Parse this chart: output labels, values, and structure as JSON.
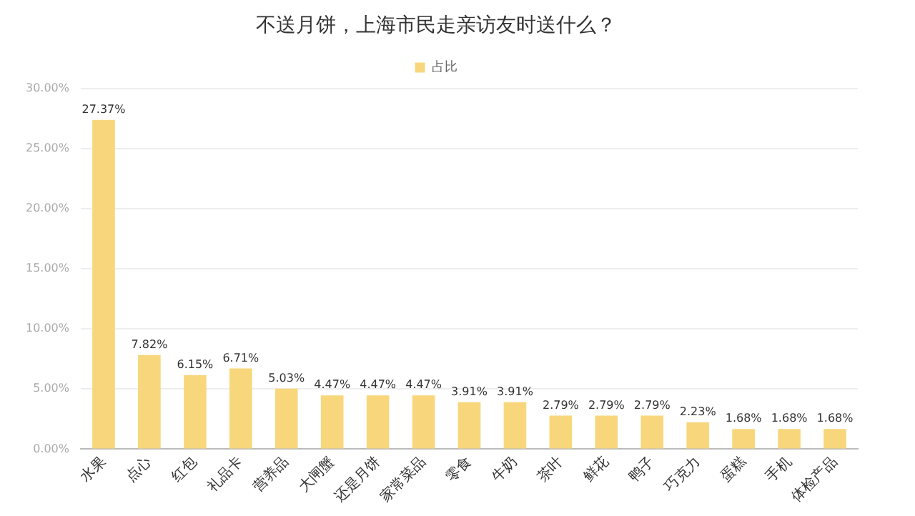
{
  "chart_data": {
    "type": "bar",
    "title": "不送月饼，上海市民走亲访友时送什么？",
    "categories": [
      "水果",
      "点心",
      "红包",
      "礼品卡",
      "营养品",
      "大闸蟹",
      "还是月饼",
      "家常菜品",
      "零食",
      "牛奶",
      "茶叶",
      "鲜花",
      "鸭子",
      "巧克力",
      "蛋糕",
      "手机",
      "体检产品"
    ],
    "series": [
      {
        "name": "占比",
        "color": "#f8d77c",
        "values": [
          27.37,
          7.82,
          6.15,
          6.71,
          5.03,
          4.47,
          4.47,
          4.47,
          3.91,
          3.91,
          2.79,
          2.79,
          2.79,
          2.23,
          1.68,
          1.68,
          1.68
        ],
        "value_labels": [
          "27.37%",
          "7.82%",
          "6.15%",
          "6.71%",
          "5.03%",
          "4.47%",
          "4.47%",
          "4.47%",
          "3.91%",
          "3.91%",
          "2.79%",
          "2.79%",
          "2.79%",
          "2.23%",
          "1.68%",
          "1.68%",
          "1.68%"
        ]
      }
    ],
    "ylim": [
      0,
      30
    ],
    "yticks": [
      {
        "value": 0,
        "label": "0.00%"
      },
      {
        "value": 5,
        "label": "5.00%"
      },
      {
        "value": 10,
        "label": "10.00%"
      },
      {
        "value": 15,
        "label": "15.00%"
      },
      {
        "value": 20,
        "label": "20.00%"
      },
      {
        "value": 25,
        "label": "25.00%"
      },
      {
        "value": 30,
        "label": "30.00%"
      }
    ],
    "grid": "y",
    "legend": "top"
  }
}
